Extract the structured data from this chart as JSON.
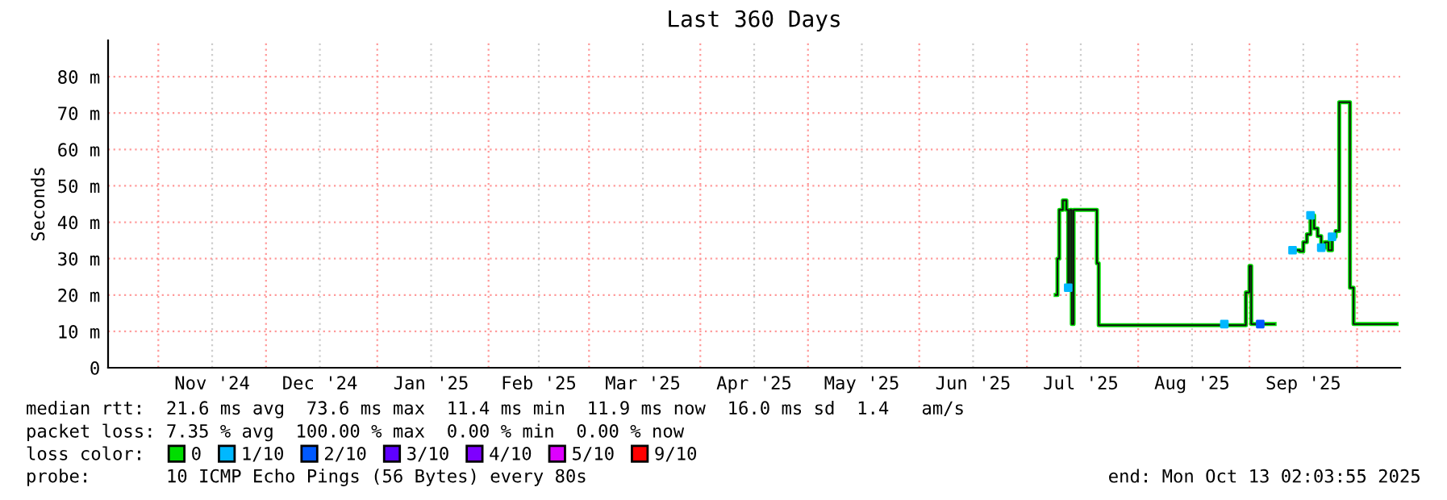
{
  "chart_data": {
    "type": "step",
    "title": "Last 360 Days",
    "ylabel": "Seconds",
    "xlim": [
      "2024-10-18",
      "2025-10-13"
    ],
    "xticks": [
      {
        "value": "2024-11-01",
        "label": null
      },
      {
        "value": "2024-11-16",
        "label": "Nov '24"
      },
      {
        "value": "2024-12-01",
        "label": null
      },
      {
        "value": "2024-12-16",
        "label": "Dec '24"
      },
      {
        "value": "2025-01-01",
        "label": null
      },
      {
        "value": "2025-01-16",
        "label": "Jan '25"
      },
      {
        "value": "2025-02-01",
        "label": null
      },
      {
        "value": "2025-02-15",
        "label": "Feb '25"
      },
      {
        "value": "2025-03-01",
        "label": null
      },
      {
        "value": "2025-03-16",
        "label": "Mar '25"
      },
      {
        "value": "2025-04-01",
        "label": null
      },
      {
        "value": "2025-04-16",
        "label": "Apr '25"
      },
      {
        "value": "2025-05-01",
        "label": null
      },
      {
        "value": "2025-05-16",
        "label": "May '25"
      },
      {
        "value": "2025-06-01",
        "label": null
      },
      {
        "value": "2025-06-16",
        "label": "Jun '25"
      },
      {
        "value": "2025-07-01",
        "label": null
      },
      {
        "value": "2025-07-16",
        "label": "Jul '25"
      },
      {
        "value": "2025-08-01",
        "label": null
      },
      {
        "value": "2025-08-16",
        "label": "Aug '25"
      },
      {
        "value": "2025-09-01",
        "label": null
      },
      {
        "value": "2025-09-16",
        "label": "Sep '25"
      },
      {
        "value": "2025-10-01",
        "label": null
      }
    ],
    "ylim": [
      0,
      90
    ],
    "yticks": [
      {
        "value": 0,
        "label": "0"
      },
      {
        "value": 10,
        "label": "10 m"
      },
      {
        "value": 20,
        "label": "20 m"
      },
      {
        "value": 30,
        "label": "30 m"
      },
      {
        "value": 40,
        "label": "40 m"
      },
      {
        "value": 50,
        "label": "50 m"
      },
      {
        "value": 60,
        "label": "60 m"
      },
      {
        "value": 70,
        "label": "70 m"
      },
      {
        "value": 80,
        "label": "80 m"
      }
    ],
    "grid": true,
    "legend": "bottom left",
    "legend_title": "loss color:",
    "series": [
      {
        "name": "0",
        "color": "#00dd00",
        "x": [
          "2025-07-09",
          "2025-07-09T12:00",
          "2025-07-10",
          "2025-07-11",
          "2025-07-12",
          "2025-07-12T12:00",
          "2025-07-13",
          "2025-07-13T12:00",
          "2025-07-14",
          "2025-07-20",
          "2025-07-20T12:00",
          "2025-07-21",
          "2025-08-31",
          "2025-09-01",
          "2025-09-01T12:00",
          "2025-09-02",
          "2025-09-04",
          "2025-09-08",
          "2025-09-13",
          "2025-09-15",
          "2025-09-16",
          "2025-09-17",
          "2025-09-18",
          "2025-09-19",
          "2025-09-20",
          "2025-09-21",
          "2025-09-22",
          "2025-09-23",
          "2025-09-24",
          "2025-09-25",
          "2025-09-26",
          "2025-09-28",
          "2025-09-29",
          "2025-09-30",
          "2025-10-12"
        ],
        "values": [
          20,
          30,
          43.4,
          46,
          43.4,
          22,
          43.4,
          12,
          43.4,
          43.4,
          28.7,
          11.7,
          20.7,
          28,
          12,
          12,
          12,
          null,
          32.3,
          32,
          34.5,
          36.7,
          41.9,
          38.3,
          36.2,
          33,
          34.5,
          32.3,
          36,
          37.6,
          73,
          73,
          22,
          12,
          12
        ]
      },
      {
        "name": "1/10",
        "color": "#00b8ff",
        "type": "scatter",
        "x": [
          "2025-07-12T12:00",
          "2025-08-25",
          "2025-09-13",
          "2025-09-18",
          "2025-09-21",
          "2025-09-24"
        ],
        "values": [
          22,
          12,
          32.3,
          41.9,
          33,
          36
        ]
      },
      {
        "name": "2/10",
        "color": "#0059ff",
        "type": "scatter",
        "x": [
          "2025-09-04"
        ],
        "values": [
          12
        ]
      },
      {
        "name": "3/10",
        "color": "#5e00ff",
        "type": "scatter"
      },
      {
        "name": "4/10",
        "color": "#7e00ff",
        "type": "scatter"
      },
      {
        "name": "5/10",
        "color": "#dd00ff",
        "type": "scatter"
      },
      {
        "name": "9/10",
        "color": "#ff0000",
        "type": "scatter"
      }
    ],
    "annotations": [
      "median rtt:  21.6 ms avg  73.6 ms max  11.4 ms min  11.9 ms now  16.0 ms sd  1.4   am/s",
      "packet loss: 7.35 % avg  100.00 % max  0.00 % min  0.00 % now",
      "probe:       10 ICMP Echo Pings (56 Bytes) every 80s",
      "end: Mon Oct 13 02:03:55 2025"
    ]
  }
}
